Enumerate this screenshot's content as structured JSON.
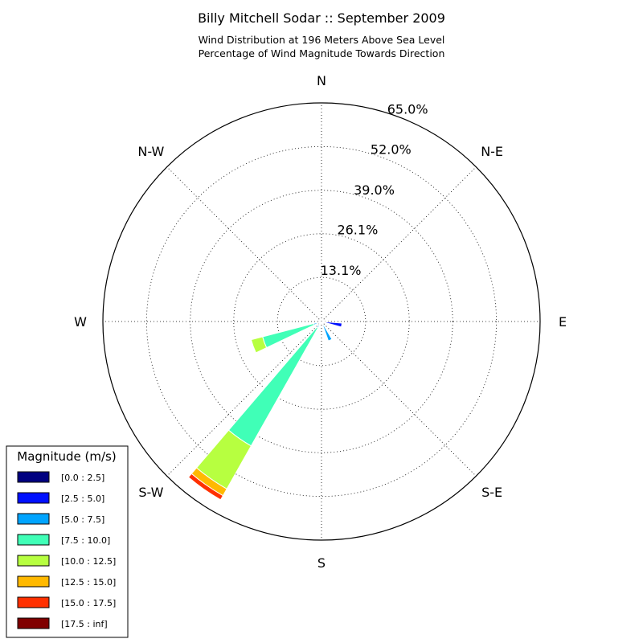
{
  "chart_data": {
    "type": "windrose",
    "title": "Billy Mitchell Sodar :: September 2009",
    "subtitle_lines": [
      "Wind Distribution at 196 Meters Above Sea Level",
      "Percentage of Wind Magnitude Towards Direction"
    ],
    "radial_max": 65.0,
    "ring_labels": [
      "13.1%",
      "26.1%",
      "39.0%",
      "52.0%",
      "65.0%"
    ],
    "ring_values": [
      13.1,
      26.1,
      39.0,
      52.0,
      65.0
    ],
    "directions": [
      "N",
      "N-E",
      "E",
      "S-E",
      "S",
      "S-W",
      "W",
      "N-W"
    ],
    "grid": "dotted",
    "legend": {
      "title": "Magnitude (m/s)",
      "placement": "bottom-left",
      "bins": [
        {
          "label": "[0.0 : 2.5]",
          "color": "#000080"
        },
        {
          "label": "[2.5 : 5.0]",
          "color": "#0010ff"
        },
        {
          "label": "[5.0 : 7.5]",
          "color": "#00a4ff"
        },
        {
          "label": "[7.5 : 10.0]",
          "color": "#40ffb7"
        },
        {
          "label": "[10.0 : 12.5]",
          "color": "#b7ff40"
        },
        {
          "label": "[12.5 : 15.0]",
          "color": "#ffb900"
        },
        {
          "label": "[15.0 : 17.5]",
          "color": "#ff3000"
        },
        {
          "label": "[17.5 : inf]",
          "color": "#800000"
        }
      ]
    },
    "sectors": [
      {
        "direction_deg": 100,
        "cumulative": [
          0.3,
          6.1
        ]
      },
      {
        "direction_deg": 155,
        "cumulative": [
          0.2,
          0.8,
          6.1
        ]
      },
      {
        "direction_deg": 215,
        "cumulative": [
          0.2,
          0.6,
          2.2,
          42.5,
          57.2,
          59.5,
          60.9
        ]
      },
      {
        "direction_deg": 250,
        "cumulative": [
          0.2,
          0.6,
          2.4,
          18.1,
          21.6
        ]
      }
    ]
  }
}
